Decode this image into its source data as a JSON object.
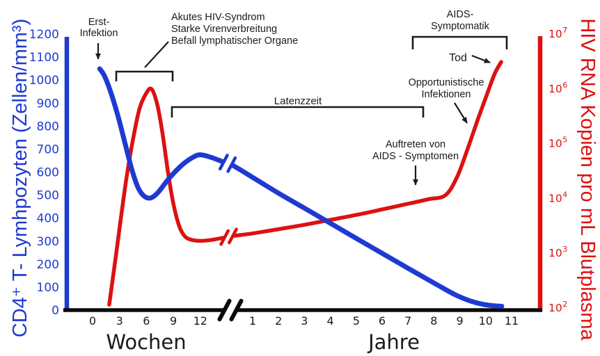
{
  "figure": {
    "language": "de",
    "colors": {
      "cd4_blue": "#1e3ad1",
      "hiv_red": "#dd1111",
      "ink": "#1a1a1a"
    }
  },
  "chart_data": {
    "type": "line",
    "dual_axis": true,
    "x_axis": {
      "has_break": true,
      "segments": [
        {
          "label": "Wochen",
          "ticks": [
            "0",
            "3",
            "6",
            "9",
            "12"
          ]
        },
        {
          "label": "Jahre",
          "ticks": [
            "1",
            "2",
            "3",
            "4",
            "5",
            "6",
            "7",
            "8",
            "9",
            "10",
            "11"
          ]
        }
      ]
    },
    "y_axis_left": {
      "label": "CD4⁺ T- Lymhpozyten (Zellen/mm³)",
      "range": [
        0,
        1200
      ],
      "ticks": [
        "1200",
        "1100",
        "1000",
        "900",
        "800",
        "700",
        "600",
        "500",
        "400",
        "300",
        "200",
        "100",
        "0"
      ]
    },
    "y_axis_right": {
      "label": "HIV RNA Kopien pro mL Blutplasma",
      "scale": "log10",
      "range": [
        100,
        10000000
      ],
      "ticks": [
        {
          "mantissa": "10",
          "exponent": "7"
        },
        {
          "mantissa": "10",
          "exponent": "6"
        },
        {
          "mantissa": "10",
          "exponent": "5"
        },
        {
          "mantissa": "10",
          "exponent": "4"
        },
        {
          "mantissa": "10",
          "exponent": "3"
        },
        {
          "mantissa": "10",
          "exponent": "2"
        }
      ]
    },
    "series": [
      {
        "name": "CD4-T-Zellen",
        "y_axis": "left",
        "points_weeks": [
          [
            0.8,
            1049
          ],
          [
            1.3,
            1020
          ],
          [
            2.0,
            950
          ],
          [
            2.8,
            848
          ],
          [
            3.6,
            728
          ],
          [
            4.4,
            607
          ],
          [
            5.1,
            530
          ],
          [
            5.8,
            494
          ],
          [
            6.5,
            488
          ],
          [
            7.3,
            512
          ],
          [
            8.5,
            572
          ],
          [
            10.0,
            632
          ],
          [
            11.3,
            667
          ],
          [
            12.1,
            675
          ],
          [
            13.2,
            664
          ],
          [
            14.65,
            643
          ]
        ],
        "points_years": [
          [
            0.17,
            633
          ],
          [
            1,
            577
          ],
          [
            2,
            508
          ],
          [
            3,
            443
          ],
          [
            3.86,
            387
          ],
          [
            5,
            312
          ],
          [
            6,
            247
          ],
          [
            7,
            182
          ],
          [
            8,
            118
          ],
          [
            8.8,
            68
          ],
          [
            9.4,
            40
          ],
          [
            9.9,
            25
          ],
          [
            10.3,
            19
          ],
          [
            10.62,
            17
          ]
        ]
      },
      {
        "name": "HIV-RNA",
        "y_axis": "right",
        "points_weeks": [
          [
            1.85,
            115
          ],
          [
            2.2,
            300
          ],
          [
            2.7,
            1200
          ],
          [
            3.2,
            5000
          ],
          [
            3.8,
            25000
          ],
          [
            4.5,
            120000
          ],
          [
            5.2,
            420000
          ],
          [
            5.9,
            790000
          ],
          [
            6.55,
            1000000
          ],
          [
            7.2,
            520000
          ],
          [
            7.8,
            150000
          ],
          [
            8.4,
            30000
          ],
          [
            9.0,
            8000
          ],
          [
            9.6,
            3300
          ],
          [
            10.2,
            2100
          ],
          [
            10.9,
            1780
          ],
          [
            12.0,
            1680
          ],
          [
            13.3,
            1760
          ],
          [
            14.8,
            1950
          ]
        ],
        "points_years": [
          [
            0.2,
            2050
          ],
          [
            1,
            2300
          ],
          [
            2,
            2750
          ],
          [
            3,
            3300
          ],
          [
            3.86,
            3950
          ],
          [
            5,
            5000
          ],
          [
            6,
            6300
          ],
          [
            7,
            8000
          ],
          [
            7.8,
            9700
          ],
          [
            8.45,
            11500
          ],
          [
            8.9,
            25000
          ],
          [
            9.3,
            80000
          ],
          [
            9.7,
            280000
          ],
          [
            10.05,
            800000
          ],
          [
            10.35,
            1900000
          ],
          [
            10.6,
            3100000
          ]
        ]
      }
    ],
    "annotations": {
      "erst_infektion": {
        "lines": [
          "Erst-",
          "Infektion"
        ]
      },
      "akutphase": {
        "lines": [
          "Akutes HIV-Syndrom",
          "Starke Virenverbreitung",
          "Befall lymphatischer Organe"
        ]
      },
      "latenzzeit": {
        "label": "Latenzzeit"
      },
      "aids_symptomatik": {
        "lines": [
          "AIDS-",
          "Symptomatik"
        ]
      },
      "tod": {
        "label": "Tod"
      },
      "opportunistische": {
        "lines": [
          "Opportunistische",
          "Infektionen"
        ]
      },
      "auftreten": {
        "lines": [
          "Auftreten von",
          "AIDS - Symptomen"
        ]
      }
    }
  }
}
